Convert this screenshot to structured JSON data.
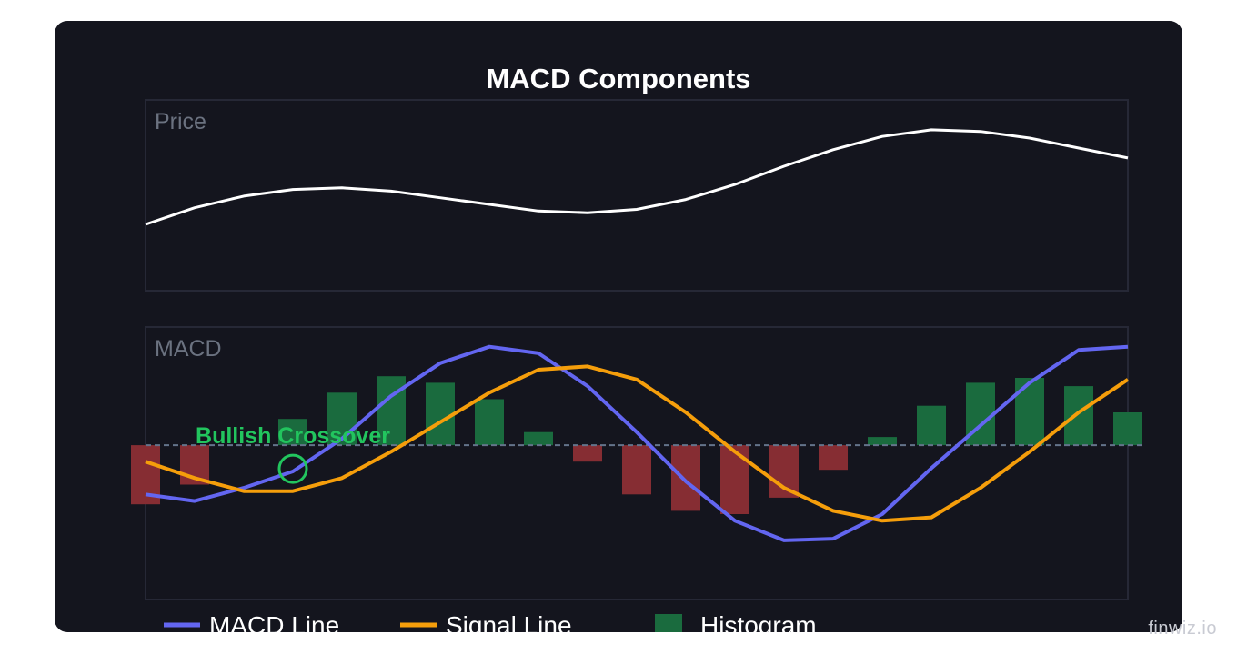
{
  "title": "MACD Components",
  "watermark": "finwiz.io",
  "colors": {
    "background": "#14151e",
    "panel_border": "#262836",
    "price_line": "#ffffff",
    "macd_line": "#6366f1",
    "signal_line": "#f59e0b",
    "hist_positive": "#1a6b3e",
    "hist_negative": "#862d33",
    "zero_line": "#64748b",
    "annotation": "#22c55e",
    "panel_label": "#6b7280"
  },
  "chart_data": [
    {
      "type": "line",
      "panel_label": "Price",
      "x": [
        0,
        1,
        2,
        3,
        4,
        5,
        6,
        7,
        8,
        9,
        10,
        11,
        12,
        13,
        14,
        15,
        16,
        17,
        18,
        19,
        20
      ],
      "series": [
        {
          "values": [
            100,
            110,
            117,
            121,
            122,
            120,
            116,
            112,
            108,
            107,
            109,
            115,
            124,
            135,
            145,
            153,
            157,
            156,
            152,
            146,
            140
          ]
        }
      ],
      "ylim": [
        60,
        175
      ]
    },
    {
      "type": "bar",
      "panel_label": "MACD",
      "x": [
        0,
        1,
        2,
        3,
        4,
        5,
        6,
        7,
        8,
        9,
        10,
        11,
        12,
        13,
        14,
        15,
        16,
        17,
        18,
        19,
        20
      ],
      "series": [
        {
          "name": "MACD Line",
          "type": "line",
          "values": [
            -1.5,
            -1.7,
            -1.3,
            -0.8,
            0.2,
            1.5,
            2.5,
            3.0,
            2.8,
            1.8,
            0.4,
            -1.1,
            -2.3,
            -2.9,
            -2.85,
            -2.1,
            -0.7,
            0.6,
            1.9,
            2.9,
            3.0
          ]
        },
        {
          "name": "Signal Line",
          "type": "line",
          "values": [
            -0.5,
            -1.0,
            -1.4,
            -1.4,
            -1.0,
            -0.2,
            0.7,
            1.6,
            2.3,
            2.4,
            2.0,
            1.0,
            -0.2,
            -1.3,
            -2.0,
            -2.3,
            -2.2,
            -1.3,
            -0.2,
            1.0,
            2.0
          ]
        },
        {
          "name": "Histogram",
          "type": "bar",
          "values": [
            -1.8,
            -1.2,
            0,
            0.8,
            1.6,
            2.1,
            1.9,
            1.4,
            0.4,
            -0.5,
            -1.5,
            -2.0,
            -2.1,
            -1.6,
            -0.75,
            0.25,
            1.2,
            1.9,
            2.05,
            1.8,
            1.0
          ]
        }
      ],
      "ylim": [
        -4.7,
        3.6
      ],
      "annotation": {
        "text": "Bullish Crossover",
        "x": 3.0,
        "y": -0.72
      }
    }
  ],
  "legend": [
    {
      "label": "MACD Line",
      "symbol": "line",
      "color": "#6366f1"
    },
    {
      "label": "Signal Line",
      "symbol": "line",
      "color": "#f59e0b"
    },
    {
      "label": "Histogram",
      "symbol": "box",
      "color": "#1a6b3e"
    }
  ]
}
